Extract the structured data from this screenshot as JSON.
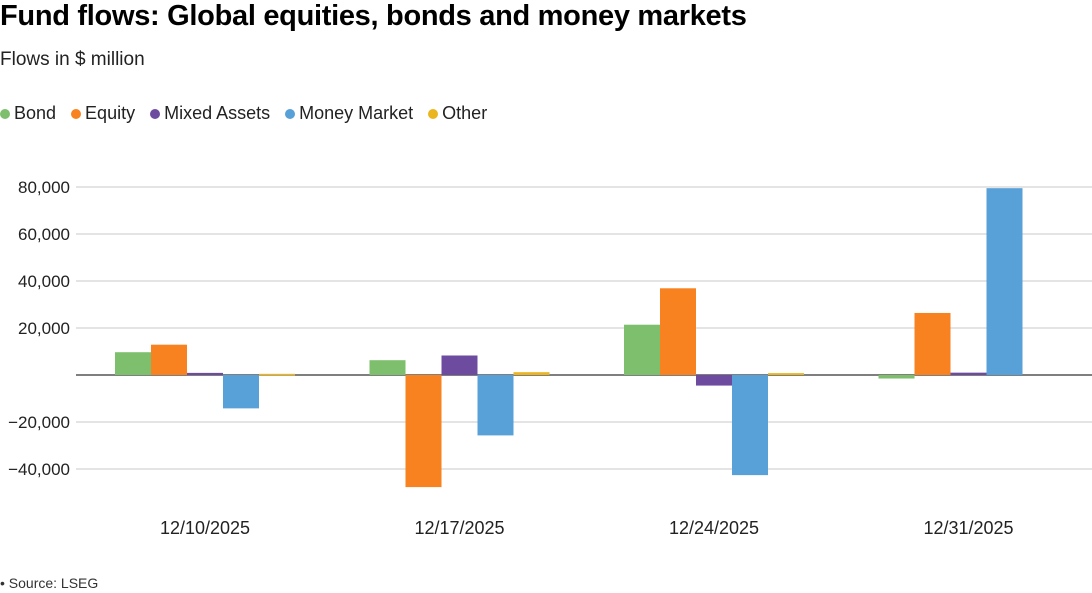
{
  "header": {
    "title": "Fund flows: Global equities, bonds and money markets",
    "subtitle": "Flows in $ million"
  },
  "footer": {
    "source": "• Source: LSEG"
  },
  "chart_data": {
    "type": "bar",
    "title": "Fund flows: Global equities, bonds and money markets",
    "subtitle": "Flows in $ million",
    "xlabel": "",
    "ylabel": "",
    "categories": [
      "12/10/2025",
      "12/17/2025",
      "12/24/2025",
      "12/31/2025"
    ],
    "series": [
      {
        "name": "Bond",
        "color": "#7dbf6c",
        "values": [
          9700,
          6300,
          21400,
          -1500
        ]
      },
      {
        "name": "Equity",
        "color": "#f7821f",
        "values": [
          12900,
          -47700,
          36900,
          26400
        ]
      },
      {
        "name": "Mixed Assets",
        "color": "#6d4ca0",
        "values": [
          900,
          8300,
          -4500,
          1000
        ]
      },
      {
        "name": "Money Market",
        "color": "#58a0d8",
        "values": [
          -14200,
          -25700,
          -42600,
          79500
        ]
      },
      {
        "name": "Other",
        "color": "#ebb51f",
        "values": [
          500,
          1200,
          800,
          0
        ]
      }
    ],
    "yticks": [
      80000,
      60000,
      40000,
      20000,
      0,
      -20000,
      -40000
    ],
    "ytick_labels": [
      "80,000",
      "60,000",
      "40,000",
      "20,000",
      "",
      "−20,000",
      "−40,000"
    ],
    "ylim": [
      -50000,
      85000
    ],
    "grid": true,
    "legend_position": "top-left"
  }
}
